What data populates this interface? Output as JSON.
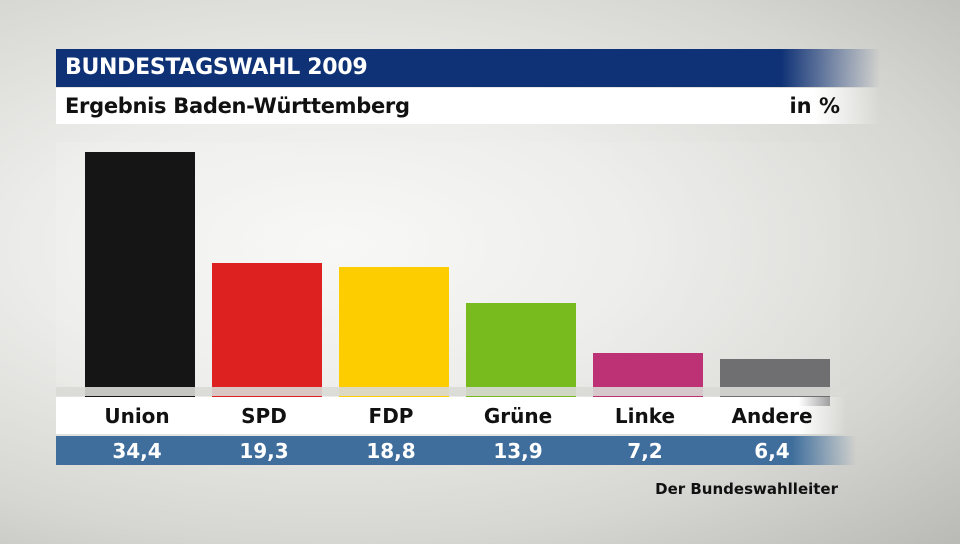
{
  "header": {
    "title": "BUNDESTAGSWAHL 2009",
    "subtitle": "Ergebnis Baden-Württemberg",
    "unit": "in %"
  },
  "source": "Der Bundeswahlleiter",
  "chart_data": {
    "type": "bar",
    "title": "BUNDESTAGSWAHL 2009",
    "subtitle": "Ergebnis Baden-Württemberg",
    "ylabel": "in %",
    "categories": [
      "Union",
      "SPD",
      "FDP",
      "Grüne",
      "Linke",
      "Andere"
    ],
    "values": [
      34.4,
      19.3,
      18.8,
      13.9,
      7.2,
      6.4
    ],
    "value_labels": [
      "34,4",
      "19,3",
      "18,8",
      "13,9",
      "7,2",
      "6,4"
    ],
    "colors": [
      "#151515",
      "#dd2120",
      "#fecd00",
      "#77bb1f",
      "#bd3175",
      "#6f6f71"
    ],
    "ylim": [
      0,
      34.4
    ]
  }
}
